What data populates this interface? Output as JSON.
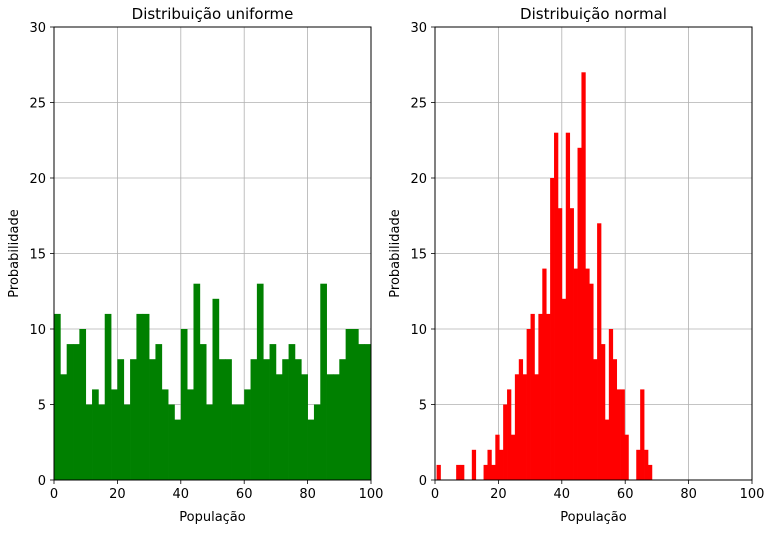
{
  "chart_data": [
    {
      "type": "bar",
      "title": "Distribuição uniforme",
      "xlabel": "População",
      "ylabel": "Probabilidade",
      "xlim": [
        0,
        100
      ],
      "ylim": [
        0,
        30
      ],
      "xticks": [
        "0",
        "20",
        "40",
        "60",
        "80",
        "100"
      ],
      "yticks": [
        "0",
        "5",
        "10",
        "15",
        "20",
        "25",
        "30"
      ],
      "grid": true,
      "color": "#008000",
      "bin_start": 0,
      "bin_width": 2,
      "values": [
        11,
        7,
        9,
        9,
        10,
        5,
        6,
        5,
        11,
        6,
        8,
        5,
        8,
        11,
        11,
        8,
        9,
        6,
        5,
        4,
        10,
        6,
        13,
        9,
        5,
        12,
        8,
        8,
        5,
        5,
        6,
        8,
        13,
        8,
        9,
        7,
        8,
        9,
        8,
        7,
        4,
        5,
        13,
        7,
        7,
        8,
        10,
        10,
        9,
        9
      ]
    },
    {
      "type": "bar",
      "title": "Distribuição normal",
      "xlabel": "População",
      "ylabel": "Probabilidade",
      "xlim": [
        0,
        100
      ],
      "ylim": [
        0,
        30
      ],
      "xticks": [
        "0",
        "20",
        "40",
        "60",
        "80",
        "100"
      ],
      "yticks": [
        "0",
        "5",
        "10",
        "15",
        "20",
        "25",
        "30"
      ],
      "grid": true,
      "color": "#ff0000",
      "bin_start": 0.5,
      "bin_width": 1.235,
      "values": [
        1,
        0,
        0,
        0,
        0,
        1,
        1,
        0,
        0,
        2,
        0,
        0,
        1,
        2,
        1,
        3,
        2,
        5,
        6,
        3,
        7,
        8,
        7,
        10,
        11,
        7,
        11,
        14,
        11,
        20,
        23,
        18,
        12,
        23,
        18,
        14,
        22,
        27,
        14,
        13,
        8,
        17,
        9,
        4,
        10,
        8,
        6,
        6,
        3,
        0,
        0,
        2,
        6,
        2,
        1
      ]
    }
  ]
}
